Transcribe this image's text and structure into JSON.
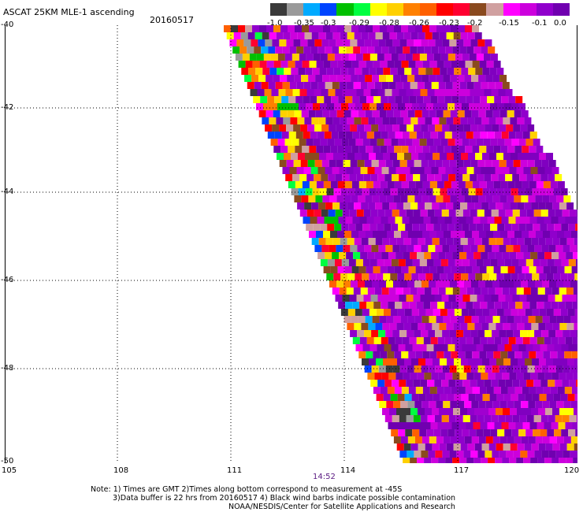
{
  "header": {
    "title": "ASCAT 25KM MLE-1 ascending",
    "date": "20160517"
  },
  "colorbar": {
    "colors": [
      "#3a3a3a",
      "#9a9a9a",
      "#00aaff",
      "#0044ff",
      "#00c000",
      "#00ff40",
      "#ffff00",
      "#ffd000",
      "#ff8000",
      "#ff6000",
      "#ff0000",
      "#ff0030",
      "#8a4a1e",
      "#d0a0a0",
      "#ff00ff",
      "#cc00dd",
      "#9000cc",
      "#7000b0"
    ],
    "labels": [
      "-1.0",
      "-0.35",
      "-0.3",
      "-0.29",
      "-0.28",
      "-0.26",
      "-0.23",
      "-0.2",
      "-0.15",
      "-0.1",
      "0.0"
    ]
  },
  "axes": {
    "lat_labels": [
      "-40",
      "-42",
      "-44",
      "-46",
      "-48",
      "-50"
    ],
    "lon_labels": [
      "105",
      "108",
      "111",
      "114",
      "117",
      "120"
    ],
    "time_label": "14:52"
  },
  "notes": {
    "line1": "Note: 1) Times are GMT 2)Times along bottom correspond to measurement at -45S",
    "line2": "3)Data buffer is 22 hrs from 20160517 4) Black wind barbs indicate possible contamination",
    "line3": "NOAA/NESDIS/Center for Satellite Applications and Research"
  }
}
